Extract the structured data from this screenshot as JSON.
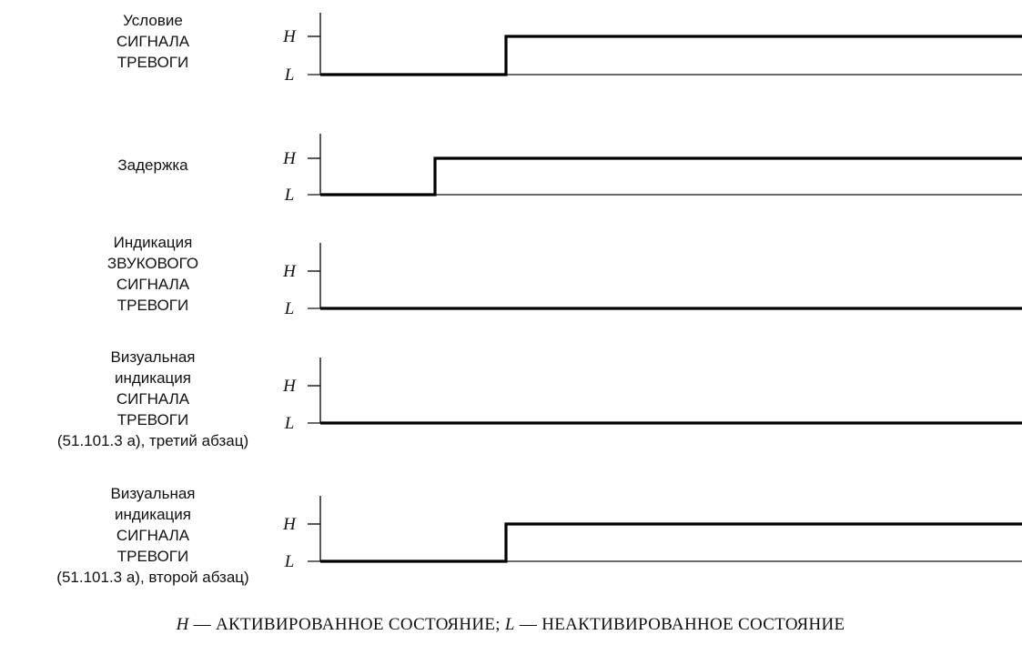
{
  "diagram": {
    "type": "timing-diagram",
    "state_labels": {
      "high": "H",
      "low": "L"
    },
    "signals": [
      {
        "id": "alarm-condition",
        "label_lines": [
          "Условие",
          "СИГНАЛА",
          "ТРЕВОГИ"
        ],
        "transitions": [
          {
            "to": "H"
          }
        ],
        "initial": "L",
        "final": "H"
      },
      {
        "id": "delay",
        "label_lines": [
          "Задержка"
        ],
        "initial": "L",
        "final": "H"
      },
      {
        "id": "auditory-alarm-indication",
        "label_lines": [
          "Индикация",
          "ЗВУКОВОГО",
          "СИГНАЛА",
          "ТРЕВОГИ"
        ],
        "initial": "L",
        "final": "L"
      },
      {
        "id": "visual-alarm-indication-third-paragraph",
        "label_lines": [
          "Визуальная",
          "индикация",
          "СИГНАЛА",
          "ТРЕВОГИ",
          "(51.101.3 а), третий абзац)"
        ],
        "initial": "L",
        "final": "L"
      },
      {
        "id": "visual-alarm-indication-second-paragraph",
        "label_lines": [
          "Визуальная",
          "индикация",
          "СИГНАЛА",
          "ТРЕВОГИ",
          "(51.101.3 а), второй абзац)"
        ],
        "initial": "L",
        "final": "H"
      }
    ],
    "caption": {
      "h_symbol": "H",
      "h_text": " — АКТИВИРОВАННОЕ СОСТОЯНИЕ; ",
      "l_symbol": "L",
      "l_text": " — НЕАКТИВИРОВАННОЕ СОСТОЯНИЕ"
    }
  }
}
